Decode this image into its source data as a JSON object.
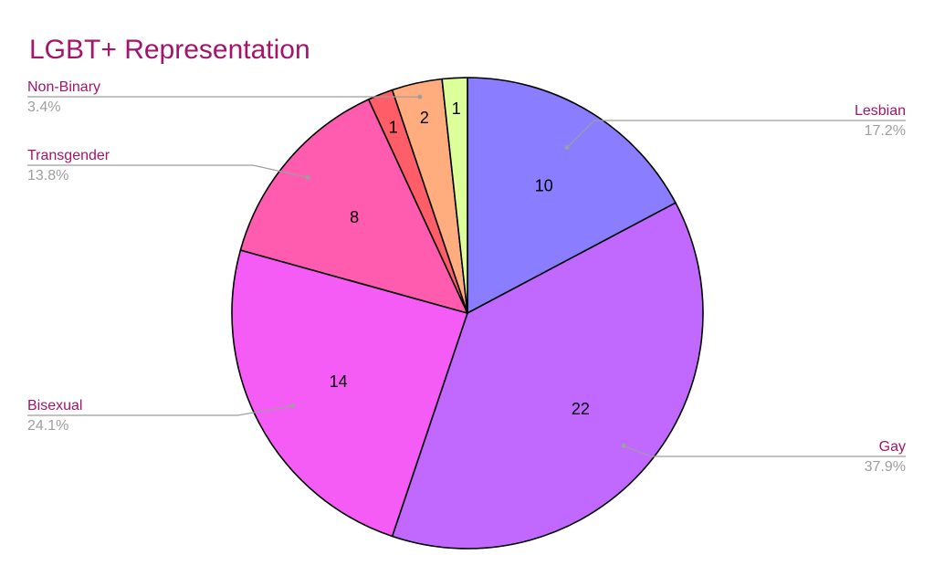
{
  "colors": {
    "title": "#a3156a",
    "label_name": "#a3156a",
    "label_pct": "#9e9e9e",
    "leader_line": "#9e9e9e"
  },
  "chart_data": {
    "type": "pie",
    "title": "LGBT+ Representation",
    "start_angle_deg": 0,
    "direction": "clockwise",
    "slices": [
      {
        "label": "Lesbian",
        "value": 10,
        "percent": "17.2%",
        "color": "#8a7dff",
        "show_label": true
      },
      {
        "label": "Gay",
        "value": 22,
        "percent": "37.9%",
        "color": "#c068ff",
        "show_label": true
      },
      {
        "label": "Bisexual",
        "value": 14,
        "percent": "24.1%",
        "color": "#f45cf5",
        "show_label": true
      },
      {
        "label": "Transgender",
        "value": 8,
        "percent": "13.8%",
        "color": "#ff5cb0",
        "show_label": true
      },
      {
        "label": "",
        "value": 1,
        "percent": "",
        "color": "#ff5e69",
        "show_label": false
      },
      {
        "label": "Non-Binary",
        "value": 2,
        "percent": "3.4%",
        "color": "#ffad7e",
        "show_label": true
      },
      {
        "label": "",
        "value": 1,
        "percent": "",
        "color": "#ddff99",
        "show_label": false
      }
    ]
  }
}
